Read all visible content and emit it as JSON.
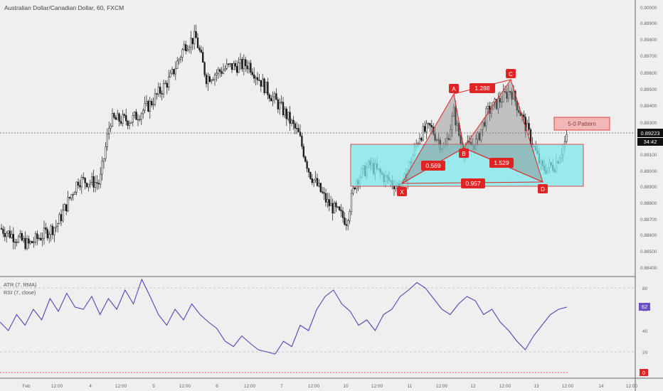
{
  "title": "Australian Dollar/Canadian Dollar, 60, FXCM",
  "price_axis": {
    "ticks": [
      "0.90000",
      "0.89900",
      "0.89800",
      "0.89700",
      "0.89600",
      "0.89500",
      "0.89400",
      "0.89300",
      "0.89100",
      "0.89000",
      "0.88900",
      "0.88800",
      "0.88700",
      "0.88600",
      "0.88500",
      "0.88400"
    ],
    "last_price": "0.89223",
    "countdown": "34:42"
  },
  "time_axis": {
    "ticks": [
      "Feb",
      "12:00",
      "4",
      "12:00",
      "5",
      "12:00",
      "6",
      "12:00",
      "7",
      "12:00",
      "10",
      "12:00",
      "11",
      "12:00",
      "12",
      "12:00",
      "13",
      "12:00",
      "14",
      "12:00"
    ]
  },
  "pattern": {
    "name": "5-0 Pattern",
    "points": [
      "X",
      "A",
      "B",
      "C",
      "D"
    ],
    "ratios": {
      "ab": "1.288",
      "xb": "0.569",
      "bd": "1.529",
      "xd": "0.957"
    }
  },
  "indicators": {
    "atr_label": "ATR (7, RMA)",
    "rsi_label": "RSI (7, close)",
    "rsi_ticks": [
      "80",
      "60",
      "40",
      "20"
    ],
    "rsi_value": "62",
    "atr_value": "0"
  },
  "colors": {
    "bg": "#efefef",
    "candle": "#1a1a1a",
    "pattern_red": "#e02424",
    "pattern_box": "#7ee8ec",
    "rsi_line": "#5a3fb8",
    "rsi_badge": "#6a4fc8"
  },
  "chart_data": {
    "type": "candlestick",
    "title": "Australian Dollar/Canadian Dollar, 60, FXCM",
    "ylim": [
      0.8837,
      0.901
    ],
    "approx_close_path": [
      [
        0,
        0.8863
      ],
      [
        40,
        0.8852
      ],
      [
        80,
        0.8865
      ],
      [
        110,
        0.8895
      ],
      [
        140,
        0.8893
      ],
      [
        155,
        0.8935
      ],
      [
        185,
        0.8935
      ],
      [
        210,
        0.8945
      ],
      [
        240,
        0.8963
      ],
      [
        260,
        0.8985
      ],
      [
        275,
        0.899
      ],
      [
        290,
        0.8963
      ],
      [
        320,
        0.897
      ],
      [
        350,
        0.8972
      ],
      [
        375,
        0.8955
      ],
      [
        400,
        0.894
      ],
      [
        420,
        0.8925
      ],
      [
        435,
        0.89
      ],
      [
        460,
        0.888
      ],
      [
        487,
        0.8868
      ],
      [
        500,
        0.8895
      ],
      [
        520,
        0.8905
      ],
      [
        545,
        0.8895
      ],
      [
        565,
        0.889
      ],
      [
        590,
        0.8925
      ],
      [
        605,
        0.893
      ],
      [
        625,
        0.8915
      ],
      [
        638,
        0.894
      ],
      [
        650,
        0.8915
      ],
      [
        670,
        0.892
      ],
      [
        685,
        0.894
      ],
      [
        718,
        0.8955
      ],
      [
        740,
        0.893
      ],
      [
        762,
        0.8902
      ],
      [
        780,
        0.8905
      ],
      [
        797,
        0.8923
      ]
    ],
    "rsi_series": [
      48,
      40,
      55,
      45,
      60,
      50,
      70,
      58,
      75,
      62,
      60,
      72,
      55,
      70,
      60,
      78,
      65,
      88,
      72,
      55,
      45,
      60,
      50,
      65,
      55,
      48,
      42,
      30,
      25,
      35,
      28,
      22,
      20,
      18,
      30,
      25,
      45,
      40,
      60,
      72,
      78,
      65,
      58,
      45,
      50,
      40,
      55,
      60,
      72,
      78,
      85,
      80,
      70,
      60,
      55,
      65,
      72,
      68,
      55,
      60,
      48,
      40,
      30,
      22,
      35,
      45,
      55,
      60,
      62
    ],
    "rsi_range": [
      0,
      100
    ]
  }
}
